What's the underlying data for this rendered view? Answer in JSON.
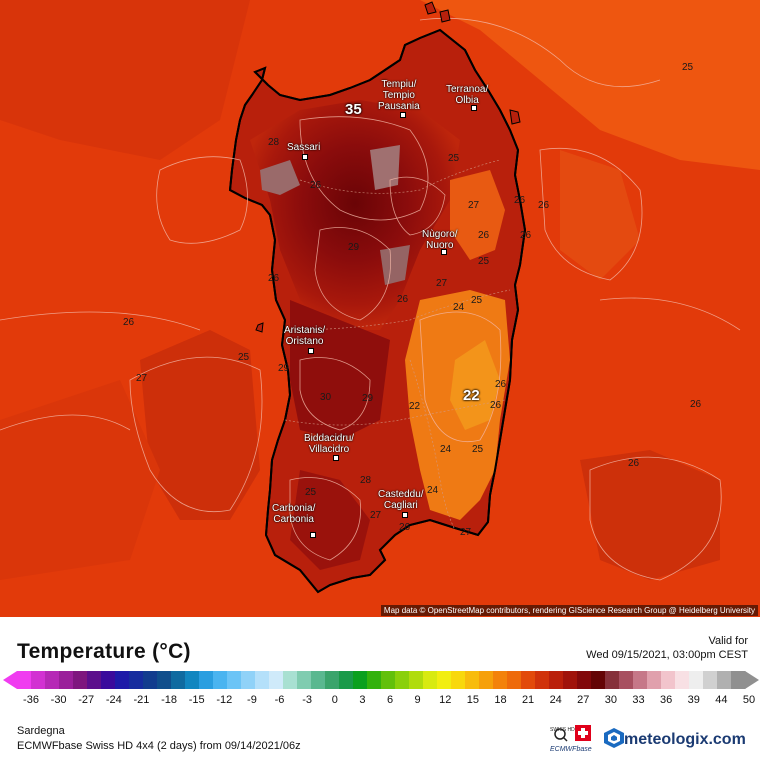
{
  "map": {
    "region": "Sardegna",
    "attribution": "Map data © OpenStreetMap contributors, rendering GIScience Research Group @ Heidelberg University",
    "cities": [
      {
        "id": "tempio",
        "label": "Tempiu/\nTempio\nPausania"
      },
      {
        "id": "olbia",
        "label": "Terranoa/\nOlbia"
      },
      {
        "id": "sassari",
        "label": "Sassari"
      },
      {
        "id": "nuoro",
        "label": "Nùgoro/\nNuoro"
      },
      {
        "id": "oristano",
        "label": "Aristanis/\nOristano"
      },
      {
        "id": "villacidro",
        "label": "Biddacidru/\nVillacidro"
      },
      {
        "id": "cagliari",
        "label": "Casteddu/\nCagliari"
      },
      {
        "id": "carbonia",
        "label": "Carbonia/\nCarbonia"
      }
    ],
    "extremes": {
      "max": "35",
      "min": "22"
    },
    "isotherm_labels": [
      "25",
      "25",
      "26",
      "26",
      "26",
      "26",
      "27",
      "27",
      "26",
      "26",
      "25",
      "24",
      "25",
      "22",
      "26",
      "26",
      "27",
      "25",
      "24",
      "25",
      "24",
      "26",
      "27",
      "28",
      "29",
      "30",
      "29",
      "28",
      "26",
      "25",
      "26",
      "29",
      "27",
      "26",
      "26"
    ]
  },
  "legend": {
    "title": "Temperature (°C)",
    "valid_label": "Valid for",
    "valid_date": "Wed 09/15/2021, 03:00pm CEST",
    "ticks": [
      "-36",
      "-30",
      "-27",
      "-24",
      "-21",
      "-18",
      "-15",
      "-12",
      "-9",
      "-6",
      "-3",
      "0",
      "3",
      "6",
      "9",
      "12",
      "15",
      "18",
      "21",
      "24",
      "27",
      "30",
      "33",
      "36",
      "39",
      "44",
      "50"
    ],
    "colors": [
      "#f03cf0",
      "#d231d2",
      "#b628b6",
      "#9a1f9a",
      "#7e167e",
      "#5c0f8c",
      "#3a0a9c",
      "#1d1aa8",
      "#162c9e",
      "#123c8e",
      "#104e8c",
      "#0f6aa0",
      "#1186c0",
      "#2a9ee0",
      "#4ab4f0",
      "#6cc4f6",
      "#90d2f8",
      "#b4e0fa",
      "#cfeafa",
      "#a8e0d2",
      "#80ccb0",
      "#5ab890",
      "#3aa46c",
      "#1a9a4a",
      "#0aa01e",
      "#33b20c",
      "#62c00a",
      "#8ad00a",
      "#b0dc0c",
      "#d8ea10",
      "#f2ee10",
      "#f8d80c",
      "#f8bc0c",
      "#f6a00a",
      "#f3820a",
      "#ee6a0a",
      "#e24a0a",
      "#d0320a",
      "#ba1f0a",
      "#a0120a",
      "#82080a",
      "#640405",
      "#86303a",
      "#a85060",
      "#c67888",
      "#e0a0ac",
      "#f2c4cc",
      "#f8e0e4",
      "#eeeeee",
      "#d0d0d0",
      "#b0b0b0",
      "#909090"
    ],
    "region": "Sardegna",
    "model": "ECMWFbase Swiss HD 4x4 (2 days) from  09/14/2021/06z",
    "brand": "meteologix.com",
    "badge_top": "SWISS HD",
    "badge_bottom": "ECMWFbase"
  }
}
